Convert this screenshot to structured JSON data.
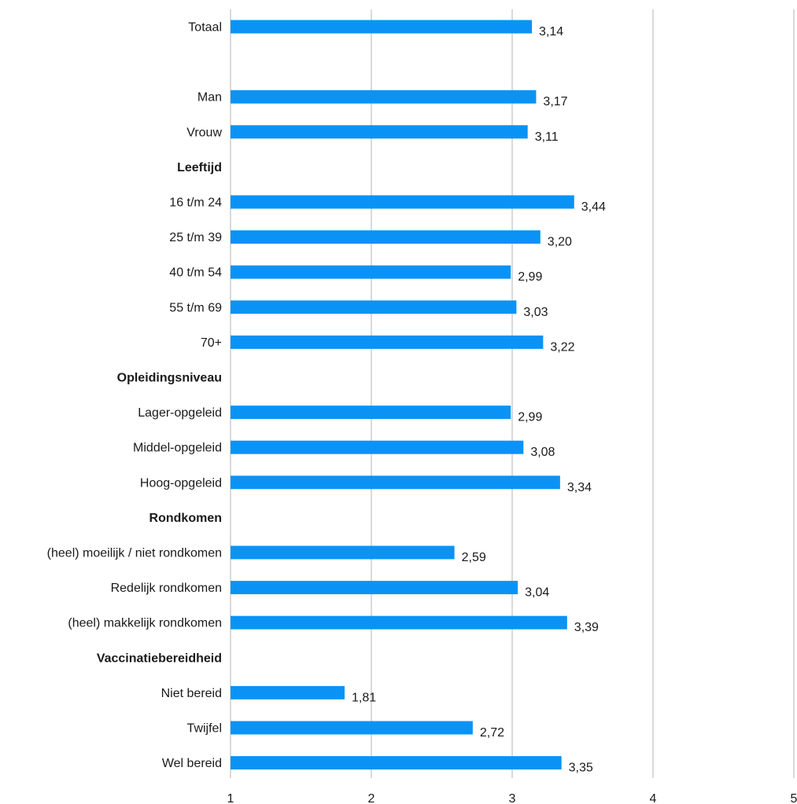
{
  "chart_data": {
    "type": "bar",
    "orientation": "horizontal",
    "title": "",
    "xlabel": "",
    "ylabel": "",
    "xlim": [
      1,
      5
    ],
    "ticks": [
      "1",
      "2",
      "3",
      "4",
      "5"
    ],
    "grid": true,
    "legend": "none",
    "bar_color": "#0a93f5",
    "decimal_separator": ",",
    "categories": [
      {
        "label": "Totaal",
        "value": 3.14,
        "header": false
      },
      {
        "label": "",
        "value": null,
        "header": false
      },
      {
        "label": "Man",
        "value": 3.17,
        "header": false
      },
      {
        "label": "Vrouw",
        "value": 3.11,
        "header": false
      },
      {
        "label": "Leeftijd",
        "value": null,
        "header": true
      },
      {
        "label": "16 t/m 24",
        "value": 3.44,
        "header": false
      },
      {
        "label": "25 t/m 39",
        "value": 3.2,
        "header": false
      },
      {
        "label": "40 t/m 54",
        "value": 2.99,
        "header": false
      },
      {
        "label": "55 t/m 69",
        "value": 3.03,
        "header": false
      },
      {
        "label": "70+",
        "value": 3.22,
        "header": false
      },
      {
        "label": "Opleidingsniveau",
        "value": null,
        "header": true
      },
      {
        "label": "Lager-opgeleid",
        "value": 2.99,
        "header": false
      },
      {
        "label": "Middel-opgeleid",
        "value": 3.08,
        "header": false
      },
      {
        "label": "Hoog-opgeleid",
        "value": 3.34,
        "header": false
      },
      {
        "label": "Rondkomen",
        "value": null,
        "header": true
      },
      {
        "label": "(heel) moeilijk / niet rondkomen",
        "value": 2.59,
        "header": false
      },
      {
        "label": "Redelijk rondkomen",
        "value": 3.04,
        "header": false
      },
      {
        "label": "(heel) makkelijk rondkomen",
        "value": 3.39,
        "header": false
      },
      {
        "label": "Vaccinatiebereidheid",
        "value": null,
        "header": true
      },
      {
        "label": "Niet bereid",
        "value": 1.81,
        "header": false
      },
      {
        "label": "Twijfel",
        "value": 2.72,
        "header": false
      },
      {
        "label": "Wel bereid",
        "value": 3.35,
        "header": false
      }
    ]
  }
}
